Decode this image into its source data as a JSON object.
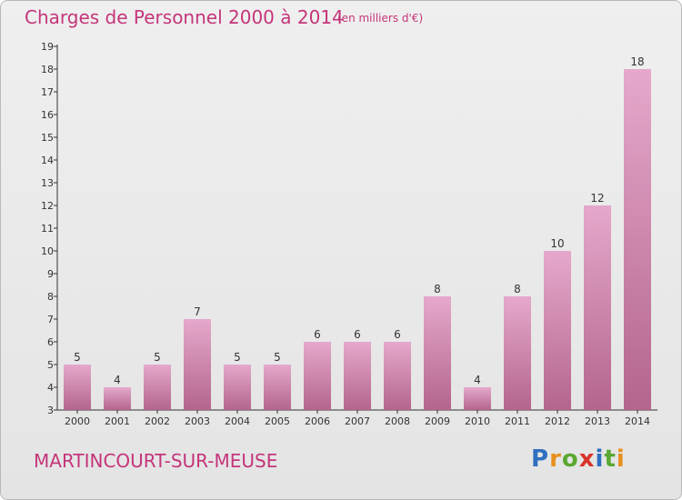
{
  "title": "Charges de Personnel 2000 à 2014",
  "subtitle": "(en milliers d'€)",
  "commune": "MARTINCOURT-SUR-MEUSE",
  "logo": {
    "letters": [
      "P",
      "r",
      "o",
      "x",
      "i",
      "t",
      "i"
    ],
    "colors": [
      "#2f6fc0",
      "#e8901e",
      "#5aa832",
      "#d8352a",
      "#2f6fc0",
      "#5aa832",
      "#e8901e"
    ]
  },
  "colors": {
    "bar_top": "#e5a8cc",
    "bar_bottom": "#b4658d",
    "accent": "#c5357a"
  },
  "chart_data": {
    "type": "bar",
    "title": "Charges de Personnel 2000 à 2014",
    "categories": [
      "2000",
      "2001",
      "2002",
      "2003",
      "2004",
      "2005",
      "2006",
      "2007",
      "2008",
      "2009",
      "2010",
      "2011",
      "2012",
      "2013",
      "2014"
    ],
    "values": [
      5,
      4,
      5,
      7,
      5,
      5,
      6,
      6,
      6,
      8,
      4,
      8,
      10,
      12,
      18
    ],
    "ylim": [
      3,
      19
    ],
    "yticks": [
      3,
      4,
      5,
      6,
      7,
      8,
      9,
      10,
      11,
      12,
      13,
      14,
      15,
      16,
      17,
      18,
      19
    ],
    "grid": false,
    "legend": "none"
  }
}
